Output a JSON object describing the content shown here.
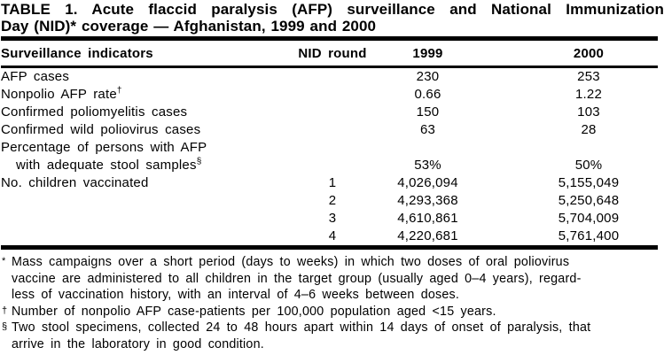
{
  "page": {
    "background": "#ffffff",
    "text_color": "#000000"
  },
  "table": {
    "title": {
      "line1": "TABLE 1. Acute flaccid paralysis (AFP) surveillance and National Immunization",
      "line2": "Day (NID)* coverage — Afghanistan, 1999 and 2000"
    },
    "columns": {
      "indicator": "Surveillance indicators",
      "nid_round": "NID round",
      "y1999": "1999",
      "y2000": "2000"
    },
    "rows": [
      {
        "label": "AFP cases",
        "nid": "",
        "v1999": "230",
        "v2000": "253"
      },
      {
        "label": "Nonpolio AFP rate",
        "marker": "†",
        "nid": "",
        "v1999": "0.66",
        "v2000": "1.22"
      },
      {
        "label": "Confirmed poliomyelitis cases",
        "nid": "",
        "v1999": "150",
        "v2000": "103"
      },
      {
        "label": "Confirmed wild poliovirus cases",
        "nid": "",
        "v1999": "63",
        "v2000": "28"
      },
      {
        "label": "Percentage of persons with AFP",
        "nid": "",
        "v1999": "",
        "v2000": ""
      },
      {
        "label": "with adequate stool samples",
        "marker": "§",
        "indent": true,
        "nid": "",
        "v1999": "53%",
        "v2000": "50%"
      },
      {
        "label": "No. children vaccinated",
        "nid": "1",
        "v1999": "4,026,094",
        "v2000": "5,155,049"
      },
      {
        "label": "",
        "nid": "2",
        "v1999": "4,293,368",
        "v2000": "5,250,648"
      },
      {
        "label": "",
        "nid": "3",
        "v1999": "4,610,861",
        "v2000": "5,704,009"
      },
      {
        "label": "",
        "nid": "4",
        "v1999": "4,220,681",
        "v2000": "5,761,400"
      }
    ],
    "footnotes": [
      {
        "marker": "*",
        "lines": [
          "Mass campaigns over a short period (days to weeks) in which two doses of oral poliovirus",
          "vaccine are administered to all children in the target group (usually aged 0–4 years), regard-",
          "less of vaccination history, with an interval of 4–6 weeks between doses."
        ]
      },
      {
        "marker": "†",
        "lines": [
          "Number of nonpolio AFP case-patients per 100,000 population aged <15 years."
        ]
      },
      {
        "marker": "§",
        "lines": [
          "Two stool specimens, collected 24 to 48 hours apart within 14 days of onset of paralysis, that",
          "arrive in the laboratory in good condition."
        ]
      }
    ]
  }
}
